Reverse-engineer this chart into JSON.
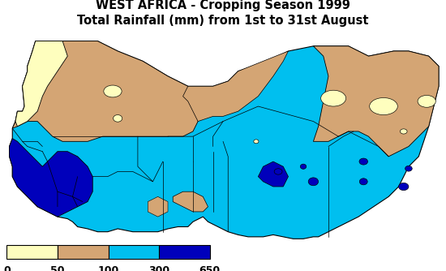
{
  "title_line1": "WEST AFRICA - Cropping Season 1999",
  "title_line2": "Total Rainfall (mm) from 1st to 31st August",
  "title_fontsize": 10.5,
  "title_fontweight": "bold",
  "colors": {
    "light_yellow": "#FEFEBE",
    "tan": "#D4A574",
    "cyan": "#00BFEF",
    "dark_blue": "#0000BB",
    "background": "#FFFFFF",
    "border": "#000000"
  },
  "legend_labels": [
    "0",
    "50",
    "100",
    "300",
    "650"
  ],
  "legend_colors": [
    "#FEFEBE",
    "#D4A574",
    "#00BFEF",
    "#0000BB"
  ],
  "xlim": [
    -18.5,
    25.5
  ],
  "ylim": [
    3.5,
    24.5
  ]
}
